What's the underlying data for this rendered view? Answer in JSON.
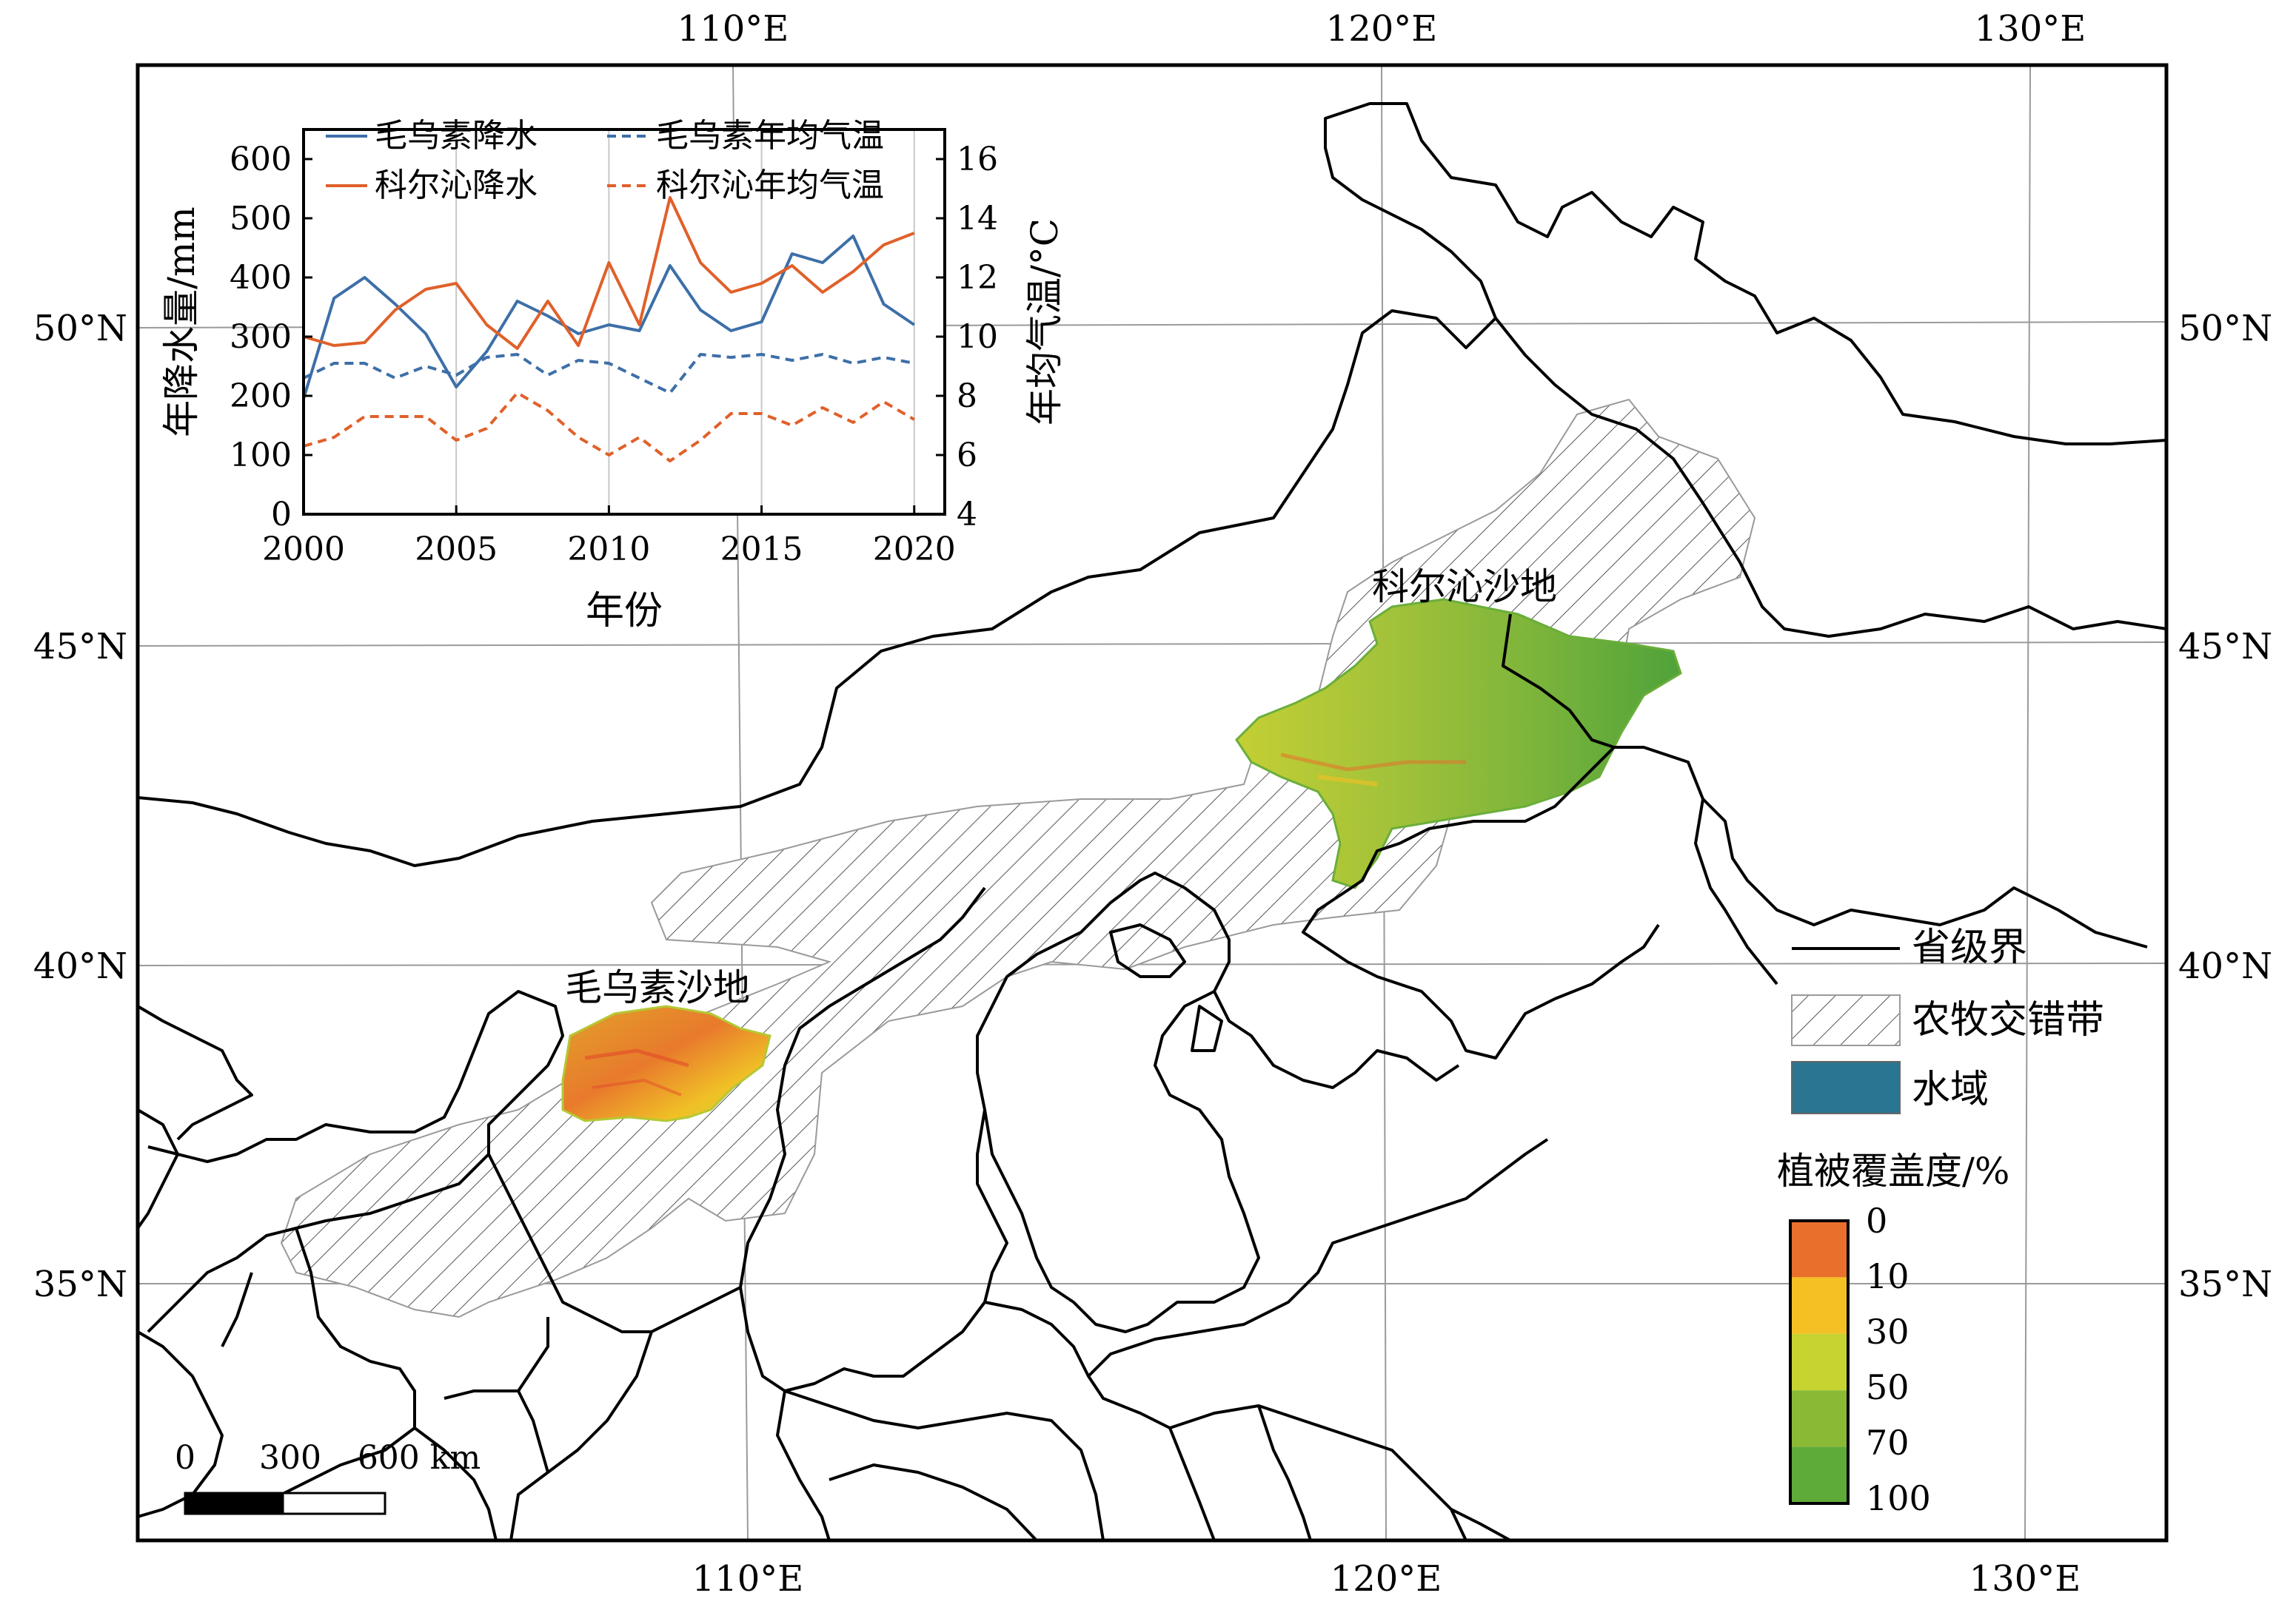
{
  "map": {
    "lon_labels": [
      "110°E",
      "120°E",
      "130°E"
    ],
    "lat_labels": [
      "50°N",
      "45°N",
      "40°N",
      "35°N"
    ],
    "place_labels": {
      "kerqin": "科尔沁沙地",
      "maowusu": "毛乌素沙地"
    },
    "scale_bar": {
      "ticks": [
        "0",
        "300",
        "600 km"
      ]
    },
    "legend": {
      "boundary": "省级界",
      "ecotone": "农牧交错带",
      "water": "水域",
      "water_color": "#2a7591",
      "colorbar_title": "植被覆盖度/%",
      "colorbar_ticks": [
        "0",
        "10",
        "30",
        "50",
        "70",
        "100"
      ],
      "colorbar_colors": [
        "#e8702c",
        "#f4c024",
        "#c6d331",
        "#8ab936",
        "#5fab3a"
      ]
    }
  },
  "chart_data": {
    "type": "line",
    "xlabel": "年份",
    "ylabel": "年降水量/mm",
    "y2label": "年均气温/°C",
    "xlim": [
      2000,
      2021
    ],
    "ylim": [
      0,
      650
    ],
    "y2lim": [
      4,
      17
    ],
    "xticks": [
      "2000",
      "2005",
      "2010",
      "2015",
      "2020"
    ],
    "yticks": [
      "0",
      "100",
      "200",
      "300",
      "400",
      "500",
      "600"
    ],
    "y2ticks": [
      "4",
      "6",
      "8",
      "10",
      "12",
      "14",
      "16"
    ],
    "x": [
      2000,
      2001,
      2002,
      2003,
      2004,
      2005,
      2006,
      2007,
      2008,
      2009,
      2010,
      2011,
      2012,
      2013,
      2014,
      2015,
      2016,
      2017,
      2018,
      2019,
      2020
    ],
    "series": [
      {
        "name": "毛乌素降水",
        "axis": "left",
        "style": "solid",
        "color": "#3d6fa8",
        "values": [
          195,
          365,
          400,
          355,
          305,
          215,
          275,
          360,
          335,
          305,
          320,
          310,
          420,
          345,
          310,
          325,
          440,
          425,
          470,
          355,
          320
        ]
      },
      {
        "name": "科尔沁降水",
        "axis": "left",
        "style": "solid",
        "color": "#e0602a",
        "values": [
          300,
          285,
          290,
          345,
          380,
          390,
          320,
          280,
          360,
          285,
          425,
          320,
          535,
          425,
          375,
          390,
          420,
          375,
          410,
          455,
          475
        ]
      },
      {
        "name": "毛乌素年均气温",
        "axis": "right",
        "style": "dashed",
        "color": "#3d6fa8",
        "values": [
          8.6,
          9.1,
          9.1,
          8.6,
          9.0,
          8.7,
          9.3,
          9.4,
          8.7,
          9.2,
          9.1,
          8.6,
          8.1,
          9.4,
          9.3,
          9.4,
          9.2,
          9.4,
          9.1,
          9.3,
          9.1
        ]
      },
      {
        "name": "科尔沁年均气温",
        "axis": "right",
        "style": "dashed",
        "color": "#e0602a",
        "values": [
          6.3,
          6.6,
          7.3,
          7.3,
          7.3,
          6.5,
          6.9,
          8.1,
          7.5,
          6.6,
          6.0,
          6.6,
          5.8,
          6.5,
          7.4,
          7.4,
          7.0,
          7.6,
          7.1,
          7.8,
          7.2
        ]
      }
    ]
  }
}
